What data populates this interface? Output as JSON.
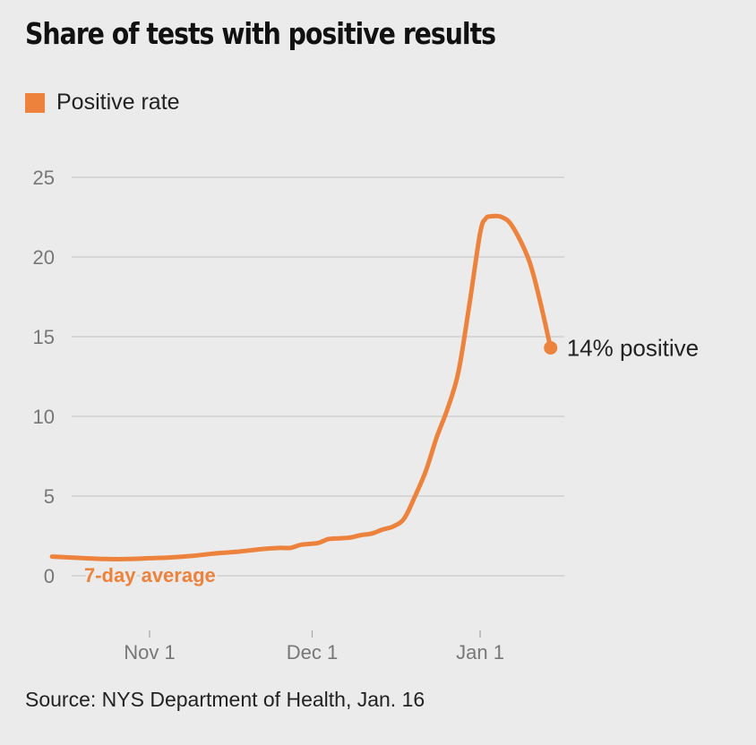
{
  "header": {
    "title": "Share of tests with positive results"
  },
  "legend": {
    "label": "Positive rate"
  },
  "annotations": {
    "series_label": "7-day average",
    "end_label": "14% positive"
  },
  "source": "Source: NYS Department of Health, Jan. 16",
  "colors": {
    "line": "#ec823b",
    "grid": "#c9c9c9",
    "axis_text": "#777777",
    "background": "#ebebeb"
  },
  "chart_data": {
    "type": "line",
    "title": "Share of tests with positive results",
    "xlabel": "",
    "ylabel": "",
    "ylim": [
      0,
      25
    ],
    "yticks": [
      0,
      5,
      10,
      15,
      20,
      25
    ],
    "xticks": [
      {
        "label": "Nov 1",
        "date": "2021-11-01"
      },
      {
        "label": "Dec 1",
        "date": "2021-12-01"
      },
      {
        "label": "Jan 1",
        "date": "2022-01-01"
      }
    ],
    "grid": true,
    "legend": "top-left",
    "series": [
      {
        "name": "Positive rate",
        "points": [
          {
            "date": "2021-10-14",
            "value": 1.2
          },
          {
            "date": "2021-10-17",
            "value": 1.15
          },
          {
            "date": "2021-10-20",
            "value": 1.1
          },
          {
            "date": "2021-10-24",
            "value": 1.05
          },
          {
            "date": "2021-10-28",
            "value": 1.05
          },
          {
            "date": "2021-11-01",
            "value": 1.1
          },
          {
            "date": "2021-11-05",
            "value": 1.15
          },
          {
            "date": "2021-11-09",
            "value": 1.25
          },
          {
            "date": "2021-11-13",
            "value": 1.4
          },
          {
            "date": "2021-11-17",
            "value": 1.5
          },
          {
            "date": "2021-11-21",
            "value": 1.65
          },
          {
            "date": "2021-11-25",
            "value": 1.75
          },
          {
            "date": "2021-11-27",
            "value": 1.75
          },
          {
            "date": "2021-11-29",
            "value": 1.95
          },
          {
            "date": "2021-12-02",
            "value": 2.05
          },
          {
            "date": "2021-12-04",
            "value": 2.3
          },
          {
            "date": "2021-12-06",
            "value": 2.35
          },
          {
            "date": "2021-12-08",
            "value": 2.4
          },
          {
            "date": "2021-12-10",
            "value": 2.55
          },
          {
            "date": "2021-12-12",
            "value": 2.65
          },
          {
            "date": "2021-12-14",
            "value": 2.9
          },
          {
            "date": "2021-12-16",
            "value": 3.1
          },
          {
            "date": "2021-12-18",
            "value": 3.6
          },
          {
            "date": "2021-12-20",
            "value": 5.0
          },
          {
            "date": "2021-12-22",
            "value": 6.6
          },
          {
            "date": "2021-12-24",
            "value": 8.7
          },
          {
            "date": "2021-12-26",
            "value": 10.5
          },
          {
            "date": "2021-12-28",
            "value": 12.8
          },
          {
            "date": "2021-12-30",
            "value": 17.0
          },
          {
            "date": "2022-01-01",
            "value": 21.5
          },
          {
            "date": "2022-01-02",
            "value": 22.4
          },
          {
            "date": "2022-01-03",
            "value": 22.55
          },
          {
            "date": "2022-01-05",
            "value": 22.5
          },
          {
            "date": "2022-01-07",
            "value": 21.9
          },
          {
            "date": "2022-01-10",
            "value": 19.8
          },
          {
            "date": "2022-01-12",
            "value": 17.3
          },
          {
            "date": "2022-01-14",
            "value": 14.3
          }
        ]
      }
    ],
    "end_point": {
      "date": "2022-01-14",
      "value": 14.3
    }
  }
}
